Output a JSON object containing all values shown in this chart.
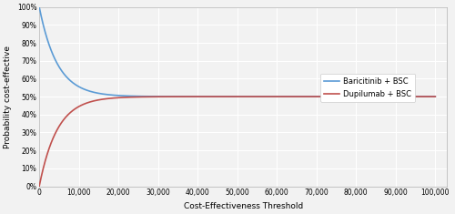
{
  "xlabel": "Cost-Effectiveness Threshold",
  "ylabel": "Probability cost-effective",
  "xlim": [
    0,
    103000
  ],
  "ylim": [
    0,
    1.0
  ],
  "xticks": [
    0,
    10000,
    20000,
    30000,
    40000,
    50000,
    60000,
    70000,
    80000,
    90000,
    100000
  ],
  "xtick_labels": [
    "0",
    "10,000",
    "20,000",
    "30,000",
    "40,000",
    "50,000",
    "60,000",
    "70,000",
    "80,000",
    "90,000",
    "100,000"
  ],
  "yticks": [
    0,
    0.1,
    0.2,
    0.3,
    0.4,
    0.5,
    0.6,
    0.7,
    0.8,
    0.9,
    1.0
  ],
  "ytick_labels": [
    "0%",
    "10%",
    "20%",
    "30%",
    "40%",
    "50%",
    "60%",
    "70%",
    "80%",
    "90%",
    "100%"
  ],
  "baricitinib_color": "#5B9BD5",
  "dupilumab_color": "#C0504D",
  "legend_labels": [
    "Baricitinib + BSC",
    "Dupilumab + BSC"
  ],
  "background_color": "#f2f2f2",
  "plot_bg_color": "#f2f2f2",
  "grid_color": "#ffffff",
  "line_width": 1.2,
  "x_max": 100000,
  "k_bari": 0.00022,
  "k_dup": 0.00022
}
